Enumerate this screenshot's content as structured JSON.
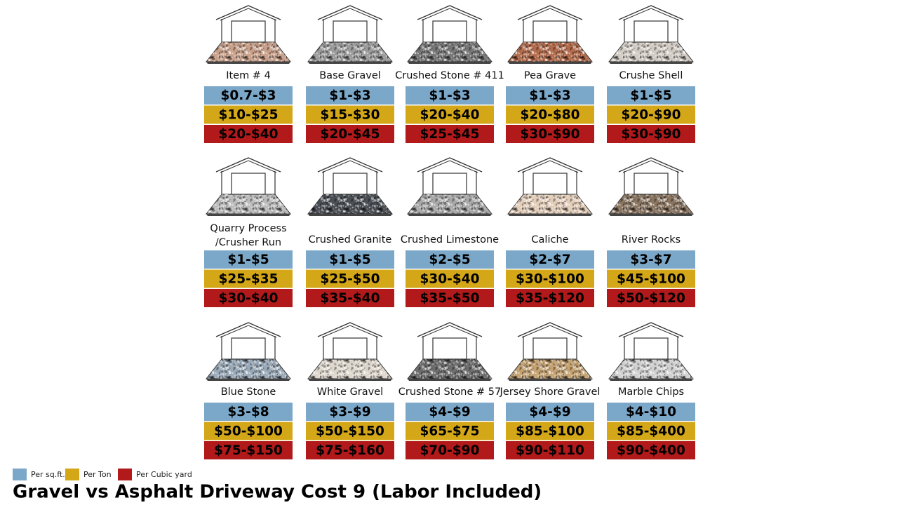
{
  "items": [
    {
      "name": "Item # 4",
      "per_sqft": "$0.7-$3",
      "per_ton": "$10-$25",
      "per_cubic_yard": "$20-$40"
    },
    {
      "name": "Base Gravel",
      "per_sqft": "$1-$3",
      "per_ton": "$15-$30",
      "per_cubic_yard": "$20-$45"
    },
    {
      "name": "Crushed Stone # 411",
      "per_sqft": "$1-$3",
      "per_ton": "$20-$40",
      "per_cubic_yard": "$25-$45"
    },
    {
      "name": "Pea Grave",
      "per_sqft": "$1-$3",
      "per_ton": "$20-$80",
      "per_cubic_yard": "$30-$90"
    },
    {
      "name": "Crushe Shell",
      "per_sqft": "$1-$5",
      "per_ton": "$20-$90",
      "per_cubic_yard": "$30-$90"
    },
    {
      "name": [
        "Quarry Process",
        "/Crusher Run"
      ],
      "per_sqft": "$1-$5",
      "per_ton": "$25-$35",
      "per_cubic_yard": "$30-$40"
    },
    {
      "name": "Crushed Granite",
      "per_sqft": "$1-$5",
      "per_ton": "$25-$50",
      "per_cubic_yard": "$35-$40"
    },
    {
      "name": "Crushed Limestone",
      "per_sqft": "$2-$5",
      "per_ton": "$30-$40",
      "per_cubic_yard": "$35-$50"
    },
    {
      "name": "Caliche",
      "per_sqft": "$2-$7",
      "per_ton": "$30-$100",
      "per_cubic_yard": "$35-$120"
    },
    {
      "name": "River Rocks",
      "per_sqft": "$3-$7",
      "per_ton": "$45-$100",
      "per_cubic_yard": "$50-$120"
    },
    {
      "name": "Blue Stone",
      "per_sqft": "$3-$8",
      "per_ton": "$50-$100",
      "per_cubic_yard": "$75-$150"
    },
    {
      "name": "White Gravel",
      "per_sqft": "$3-$9",
      "per_ton": "$50-$150",
      "per_cubic_yard": "$75-$160"
    },
    {
      "name": "Crushed Stone # 57",
      "per_sqft": "$4-$9",
      "per_ton": "$65-$75",
      "per_cubic_yard": "$70-$90"
    },
    {
      "name": "Jersey Shore Gravel",
      "per_sqft": "$4-$9",
      "per_ton": "$85-$100",
      "per_cubic_yard": "$90-$110"
    },
    {
      "name": "Marble Chips",
      "per_sqft": "$4-$10",
      "per_ton": "$85-$400",
      "per_cubic_yard": "$90-$400"
    }
  ],
  "legend": {
    "per_sqft": "Per sq.ft.",
    "per_ton": "Per Ton",
    "per_cubic_yard": "Per Cubic yard"
  },
  "title": "Gravel vs Asphalt Driveway Cost 9 (Labor Included)"
}
